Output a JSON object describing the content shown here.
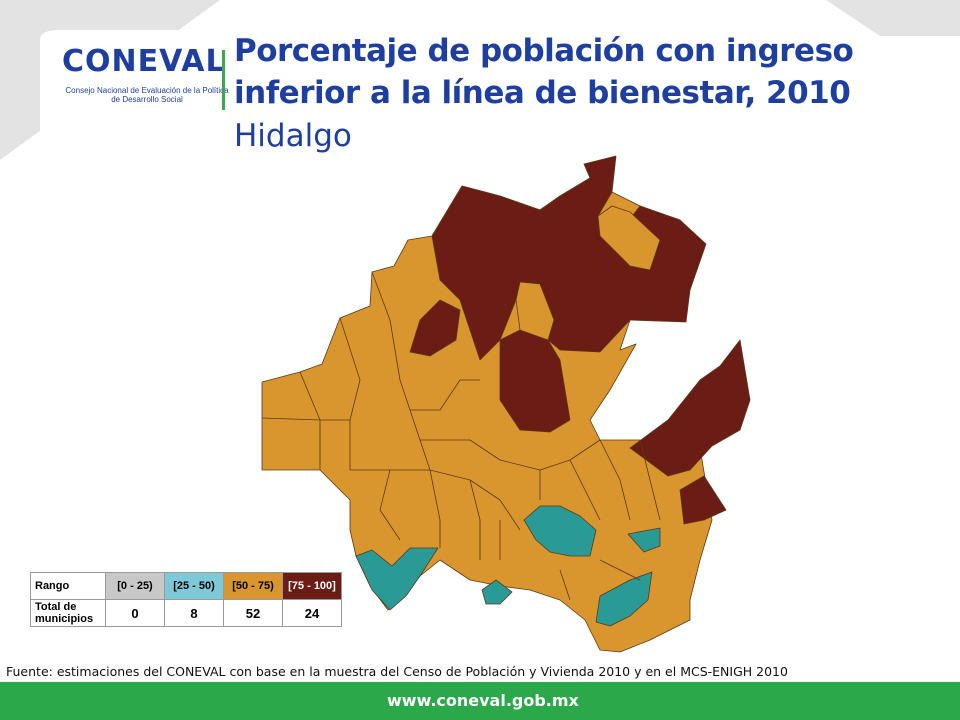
{
  "header": {
    "logo_text": "CONEVAL",
    "logo_subtitle": "Consejo Nacional de Evaluación de la Política de Desarrollo Social",
    "title": "Porcentaje de población con ingreso inferior a la línea de bienestar, 2010",
    "subtitle": "Hidalgo"
  },
  "legend": {
    "row_label_1": "Rango",
    "row_label_2": "Total de municipios",
    "categories": [
      {
        "range": "[0 - 25)",
        "count": "0",
        "color": "#c8c8c8"
      },
      {
        "range": "[25 - 50)",
        "count": "8",
        "color": "#7dc9d8"
      },
      {
        "range": "[50 - 75)",
        "count": "52",
        "color": "#d9962e"
      },
      {
        "range": "[75 - 100]",
        "count": "24",
        "color": "#6b1c14"
      }
    ]
  },
  "source": "Fuente: estimaciones del CONEVAL con base en la muestra del Censo de Población y Vivienda 2010 y en el MCS-ENIGH 2010",
  "footer": {
    "url": "www.coneval.gob.mx"
  },
  "colors": {
    "accent_blue": "#1e3fa0",
    "accent_green": "#2aa84a",
    "map_orange": "#d9962e",
    "map_brown": "#6b1c14",
    "map_teal": "#2a9a96"
  }
}
